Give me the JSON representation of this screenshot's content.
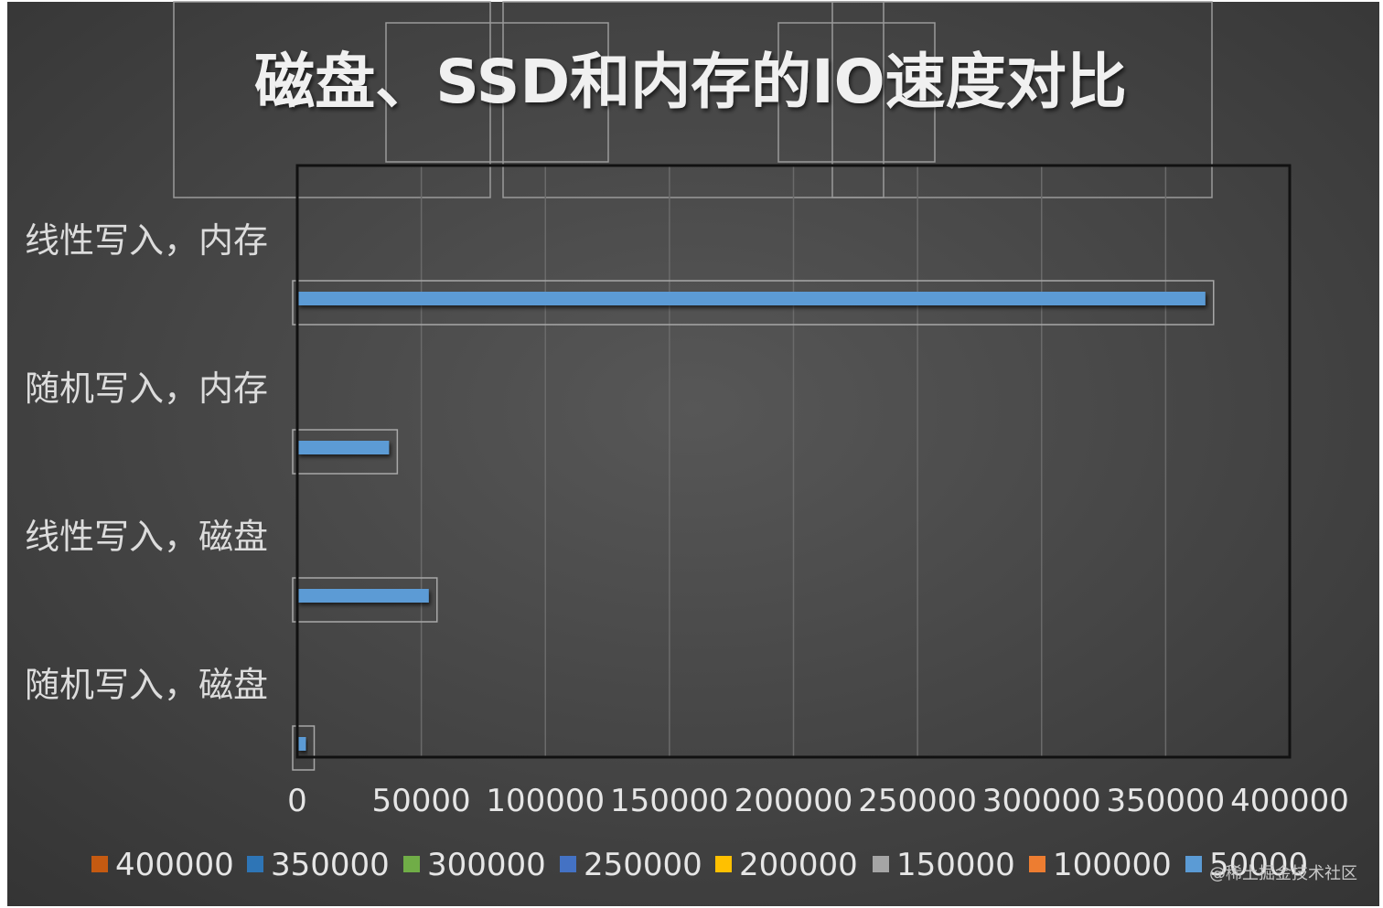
{
  "chart_data": {
    "type": "bar",
    "orientation": "horizontal",
    "title": "磁盘、SSD和内存的IO速度对比",
    "categories": [
      "线性写入，内存",
      "随机写入，内存",
      "线性写入，磁盘",
      "随机写入，磁盘"
    ],
    "values": [
      366000,
      37000,
      53000,
      3500
    ],
    "xlim": [
      0,
      400000
    ],
    "xticks": [
      "0",
      "50000",
      "100000",
      "150000",
      "200000",
      "250000",
      "300000",
      "350000",
      "400000"
    ],
    "grid": "vertical",
    "legend_position": "bottom",
    "legend": [
      {
        "label": "400000",
        "color": "#c55a11"
      },
      {
        "label": "350000",
        "color": "#2e75b6"
      },
      {
        "label": "300000",
        "color": "#70ad47"
      },
      {
        "label": "250000",
        "color": "#4472c4"
      },
      {
        "label": "200000",
        "color": "#ffc000"
      },
      {
        "label": "150000",
        "color": "#a5a5a5"
      },
      {
        "label": "100000",
        "color": "#ed7d31"
      },
      {
        "label": "50000",
        "color": "#5b9bd5"
      }
    ],
    "bar_color": "#5b9bd5",
    "watermark": "@稀土掘金技术社区"
  },
  "colors": {
    "background": "#474747",
    "background_dark": "#333333",
    "grid": "#6a6a6a",
    "axis": "#111111"
  }
}
